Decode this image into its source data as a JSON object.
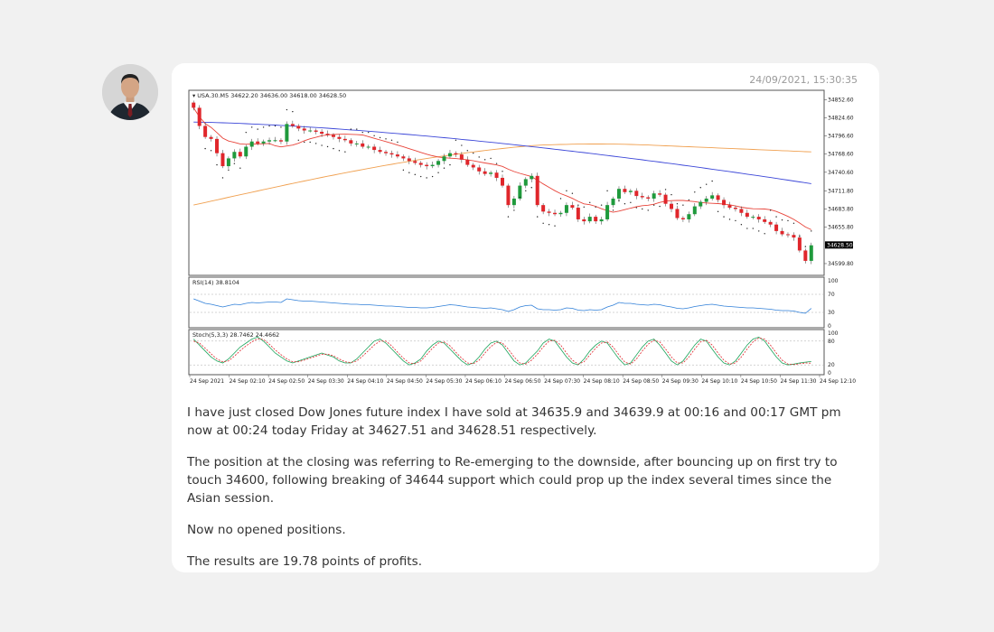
{
  "message": {
    "timestamp": "24/09/2021, 15:30:35",
    "paragraphs": [
      "I have just closed Dow Jones future index I have sold at 34635.9 and 34639.9 at 00:16 and 00:17 GMT pm now at 00:24 today Friday at 34627.51 and 34628.51 respectively.",
      "The position at the closing was referring to Re-emerging to the downside, after bouncing up on first try to touch 34600, following breaking of 34644 support which could prop up the index several times since the Asian session.",
      "Now no opened positions.",
      "The results are 19.78 points of profits."
    ]
  },
  "chart_data": {
    "type": "candlestick",
    "symbol_header": "USA.30.M5",
    "header_values": "34622.20 34636.00 34618.00 34628.50",
    "price_ticks": [
      "34852.60",
      "34824.60",
      "34796.60",
      "34768.60",
      "34740.60",
      "34711.80",
      "34683.80",
      "34655.80",
      "34599.80"
    ],
    "last_price_label": "34628.50",
    "ylim": [
      34590,
      34860
    ],
    "time_labels": [
      "24 Sep 2021",
      "24 Sep 02:10",
      "24 Sep 02:50",
      "24 Sep 03:30",
      "24 Sep 04:10",
      "24 Sep 04:50",
      "24 Sep 05:30",
      "24 Sep 06:10",
      "24 Sep 06:50",
      "24 Sep 07:30",
      "24 Sep 08:10",
      "24 Sep 08:50",
      "24 Sep 09:30",
      "24 Sep 10:10",
      "24 Sep 10:50",
      "24 Sep 11:30",
      "24 Sep 12:10"
    ],
    "close": [
      34840,
      34812,
      34795,
      34792,
      34770,
      34750,
      34762,
      34772,
      34765,
      34780,
      34788,
      34785,
      34788,
      34790,
      34790,
      34788,
      34815,
      34812,
      34808,
      34805,
      34805,
      34803,
      34800,
      34798,
      34795,
      34792,
      34790,
      34785,
      34785,
      34780,
      34780,
      34775,
      34772,
      34770,
      34768,
      34765,
      34762,
      34758,
      34755,
      34752,
      34750,
      34752,
      34758,
      34765,
      34770,
      34768,
      34760,
      34752,
      34748,
      34742,
      34738,
      34740,
      34732,
      34720,
      34690,
      34700,
      34720,
      34730,
      34735,
      34690,
      34680,
      34678,
      34676,
      34678,
      34690,
      34686,
      34668,
      34665,
      34672,
      34665,
      34668,
      34690,
      34700,
      34715,
      34710,
      34712,
      34704,
      34702,
      34700,
      34708,
      34706,
      34692,
      34684,
      34670,
      34668,
      34676,
      34688,
      34695,
      34700,
      34705,
      34698,
      34690,
      34686,
      34684,
      34678,
      34672,
      34672,
      34668,
      34664,
      34660,
      34650,
      34645,
      34644,
      34640,
      34620,
      34604,
      34628
    ],
    "rsi": {
      "label": "RSI(14) 38.8104",
      "levels": [
        "100",
        "70",
        "30",
        "0"
      ],
      "values": [
        60,
        55,
        50,
        48,
        45,
        42,
        45,
        48,
        47,
        50,
        52,
        51,
        52,
        53,
        53,
        52,
        60,
        58,
        56,
        55,
        55,
        54,
        53,
        52,
        51,
        50,
        49,
        48,
        48,
        47,
        47,
        46,
        45,
        44,
        44,
        43,
        42,
        41,
        41,
        40,
        40,
        41,
        43,
        45,
        47,
        46,
        44,
        42,
        41,
        40,
        39,
        40,
        38,
        36,
        32,
        36,
        42,
        45,
        46,
        38,
        36,
        36,
        35,
        36,
        40,
        39,
        35,
        34,
        36,
        35,
        36,
        42,
        46,
        52,
        50,
        50,
        48,
        47,
        46,
        48,
        47,
        44,
        42,
        39,
        38,
        40,
        43,
        45,
        47,
        48,
        46,
        44,
        43,
        42,
        41,
        40,
        40,
        39,
        38,
        37,
        35,
        34,
        34,
        33,
        30,
        28,
        38.8
      ]
    },
    "stoch": {
      "label": "Stoch(5,3,3) 28.7462 24.4662",
      "levels": [
        "100",
        "80",
        "20",
        "0"
      ],
      "main": [
        85,
        70,
        55,
        40,
        30,
        25,
        35,
        50,
        65,
        75,
        85,
        90,
        80,
        65,
        50,
        40,
        30,
        25,
        30,
        35,
        40,
        45,
        50,
        45,
        40,
        30,
        25,
        25,
        35,
        50,
        65,
        80,
        85,
        75,
        60,
        45,
        30,
        20,
        25,
        35,
        55,
        70,
        80,
        75,
        60,
        45,
        30,
        20,
        25,
        40,
        60,
        75,
        80,
        70,
        50,
        30,
        20,
        25,
        40,
        55,
        75,
        85,
        80,
        60,
        40,
        25,
        20,
        35,
        55,
        70,
        80,
        75,
        55,
        35,
        20,
        25,
        45,
        65,
        80,
        85,
        70,
        50,
        30,
        20,
        30,
        50,
        70,
        85,
        80,
        60,
        40,
        25,
        20,
        30,
        50,
        70,
        85,
        90,
        80,
        60,
        40,
        25,
        20,
        22,
        25,
        27,
        28.7
      ],
      "signal": [
        80,
        75,
        62,
        48,
        35,
        28,
        30,
        42,
        56,
        68,
        78,
        86,
        84,
        72,
        58,
        46,
        35,
        28,
        28,
        32,
        37,
        42,
        47,
        47,
        43,
        35,
        28,
        26,
        30,
        42,
        56,
        70,
        80,
        80,
        68,
        52,
        37,
        25,
        23,
        30,
        46,
        62,
        75,
        78,
        68,
        52,
        37,
        25,
        23,
        32,
        50,
        66,
        77,
        75,
        60,
        40,
        25,
        22,
        32,
        47,
        65,
        80,
        82,
        70,
        50,
        32,
        22,
        28,
        45,
        62,
        75,
        78,
        65,
        45,
        27,
        22,
        35,
        55,
        72,
        82,
        78,
        60,
        40,
        25,
        25,
        40,
        60,
        78,
        82,
        70,
        50,
        32,
        22,
        25,
        40,
        60,
        78,
        88,
        85,
        70,
        50,
        32,
        22,
        21,
        23,
        25,
        24.5
      ]
    }
  }
}
